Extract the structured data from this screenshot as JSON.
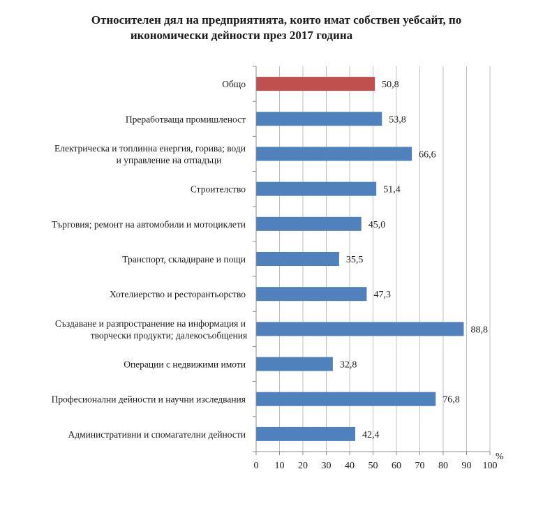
{
  "chart_data": {
    "type": "bar",
    "orientation": "horizontal",
    "title": [
      "Относителен дял на предприятията, които имат собствен уебсайт, по",
      "икономически дейности през 2017 година"
    ],
    "xlabel": "%",
    "ylabel": "",
    "xlim": [
      0,
      100
    ],
    "xticks": [
      "0",
      "10",
      "20",
      "30",
      "40",
      "50",
      "60",
      "70",
      "80",
      "90",
      "100"
    ],
    "grid": true,
    "categories": [
      [
        "Общо"
      ],
      [
        "Преработваща промишленост"
      ],
      [
        "Електрическа и топлинна енергия, горива; води",
        "и управление на отпадъци"
      ],
      [
        "Строителство"
      ],
      [
        "Търговия; ремонт на автомобили и мотоциклети"
      ],
      [
        "Транспорт, складиране и пощи"
      ],
      [
        "Хотелиерство и ресторантьорство"
      ],
      [
        "Създаване и разпространение на информация и",
        "творчески продукти; далекосъобщения"
      ],
      [
        "Операции с недвижими имоти"
      ],
      [
        "Професионални дейности и научни изследвания"
      ],
      [
        "Административни и спомагателни дейности"
      ]
    ],
    "values": [
      50.8,
      53.8,
      66.6,
      51.4,
      45.0,
      35.5,
      47.3,
      88.8,
      32.8,
      76.8,
      42.4
    ],
    "value_labels": [
      "50,8",
      "53,8",
      "66,6",
      "51,4",
      "45,0",
      "35,5",
      "47,3",
      "88,8",
      "32,8",
      "76,8",
      "42,4"
    ],
    "colors": [
      "#c0504d",
      "#4f81bd",
      "#4f81bd",
      "#4f81bd",
      "#4f81bd",
      "#4f81bd",
      "#4f81bd",
      "#4f81bd",
      "#4f81bd",
      "#4f81bd",
      "#4f81bd"
    ]
  }
}
